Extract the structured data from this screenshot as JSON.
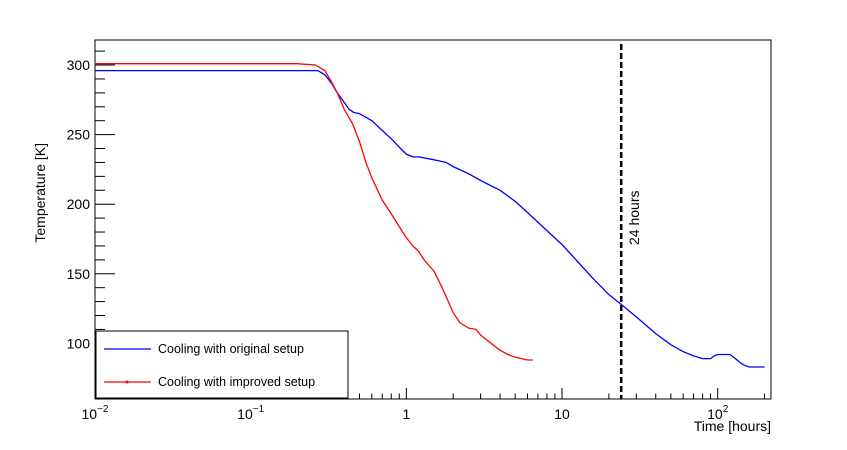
{
  "chart_data": {
    "type": "line",
    "x_scale": "log",
    "xlim": [
      0.01,
      220
    ],
    "ylim": [
      60,
      318
    ],
    "xlabel": "Time [hours]",
    "ylabel": "Temperature [K]",
    "x_tick_labels": [
      {
        "value": 0.01,
        "base": "10",
        "exp": "−2"
      },
      {
        "value": 0.1,
        "base": "10",
        "exp": "−1"
      },
      {
        "value": 1,
        "base": "1",
        "exp": ""
      },
      {
        "value": 10,
        "base": "10",
        "exp": ""
      },
      {
        "value": 100,
        "base": "10",
        "exp": "2"
      }
    ],
    "y_ticks": [
      100,
      150,
      200,
      250,
      300
    ],
    "grid": false,
    "legend_placement": "bottom-left",
    "annotation": {
      "x": 24,
      "label": "24 hours",
      "style": "dashed",
      "color": "#000000"
    },
    "series": [
      {
        "name": "Cooling with original setup",
        "color": "#0000ff",
        "x": [
          0.01,
          0.1,
          0.2,
          0.27,
          0.3,
          0.33,
          0.36,
          0.4,
          0.43,
          0.46,
          0.5,
          0.6,
          0.7,
          0.8,
          0.9,
          1.0,
          1.1,
          1.2,
          1.5,
          1.8,
          2.0,
          2.5,
          3.0,
          4.0,
          5.0,
          6.0,
          8.0,
          10,
          13,
          16,
          20,
          24,
          30,
          40,
          50,
          60,
          70,
          80,
          90,
          95,
          100,
          110,
          120,
          130,
          140,
          150,
          160,
          180,
          200
        ],
        "y": [
          296,
          296,
          296,
          296,
          293,
          287,
          280,
          273,
          268,
          266,
          265,
          260,
          253,
          247,
          241,
          236,
          234,
          234,
          232,
          230,
          227,
          222,
          217,
          210,
          202,
          194,
          181,
          171,
          157,
          146,
          135,
          128,
          119,
          107,
          99,
          94,
          91,
          89,
          89,
          91,
          92,
          92,
          92,
          89,
          86,
          84,
          83,
          83,
          83
        ]
      },
      {
        "name": "Cooling with improved setup",
        "color": "#ff0000",
        "x": [
          0.01,
          0.1,
          0.2,
          0.26,
          0.3,
          0.33,
          0.36,
          0.4,
          0.45,
          0.5,
          0.55,
          0.6,
          0.7,
          0.8,
          0.9,
          1.0,
          1.1,
          1.2,
          1.3,
          1.5,
          1.7,
          2.0,
          2.2,
          2.5,
          2.8,
          3.0,
          3.5,
          4.0,
          4.5,
          5.0,
          5.5,
          6.0,
          6.5
        ],
        "y": [
          301,
          301,
          301,
          300,
          296,
          288,
          280,
          268,
          258,
          245,
          230,
          219,
          203,
          193,
          184,
          176,
          170,
          166,
          160,
          152,
          140,
          122,
          115,
          111,
          110,
          106,
          100,
          95,
          92,
          90,
          89,
          88,
          88
        ]
      }
    ]
  }
}
